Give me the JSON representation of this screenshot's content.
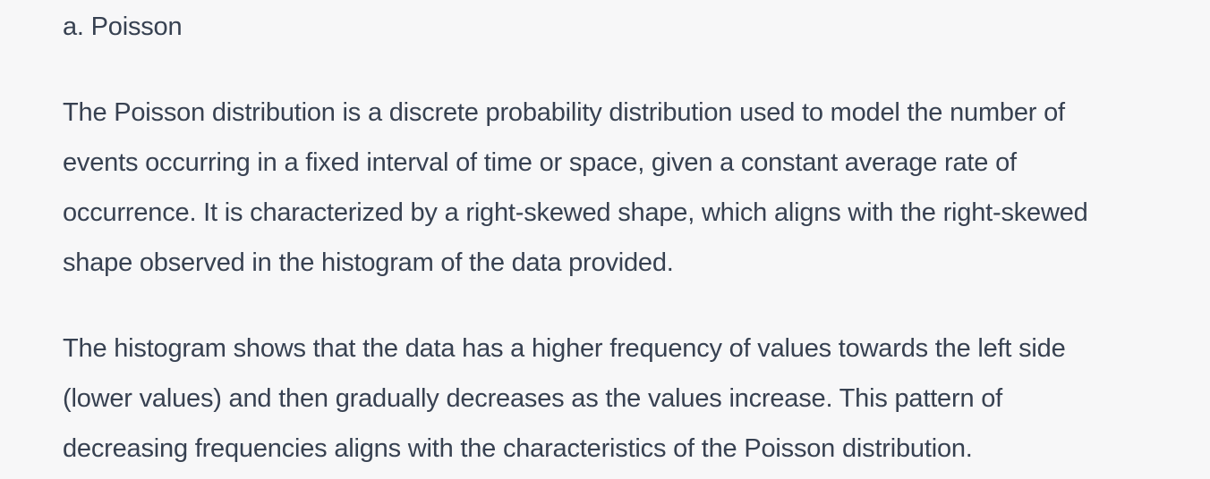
{
  "answer": {
    "option": "a. Poisson",
    "paragraphs": [
      {
        "lines": [
          "The Poisson distribution is a discrete probability distribution used to model the number of",
          "events occurring in a fixed interval of time or space, given a constant average rate of",
          "occurrence. It is characterized by a right-skewed shape, which aligns with the right-skewed",
          "shape observed in the histogram of the data provided."
        ]
      },
      {
        "lines": [
          "The histogram shows that the data has a higher frequency of values towards the left side",
          "(lower values) and then gradually decreases as the values increase. This pattern of",
          "decreasing frequencies aligns with the characteristics of the Poisson distribution."
        ]
      }
    ]
  }
}
